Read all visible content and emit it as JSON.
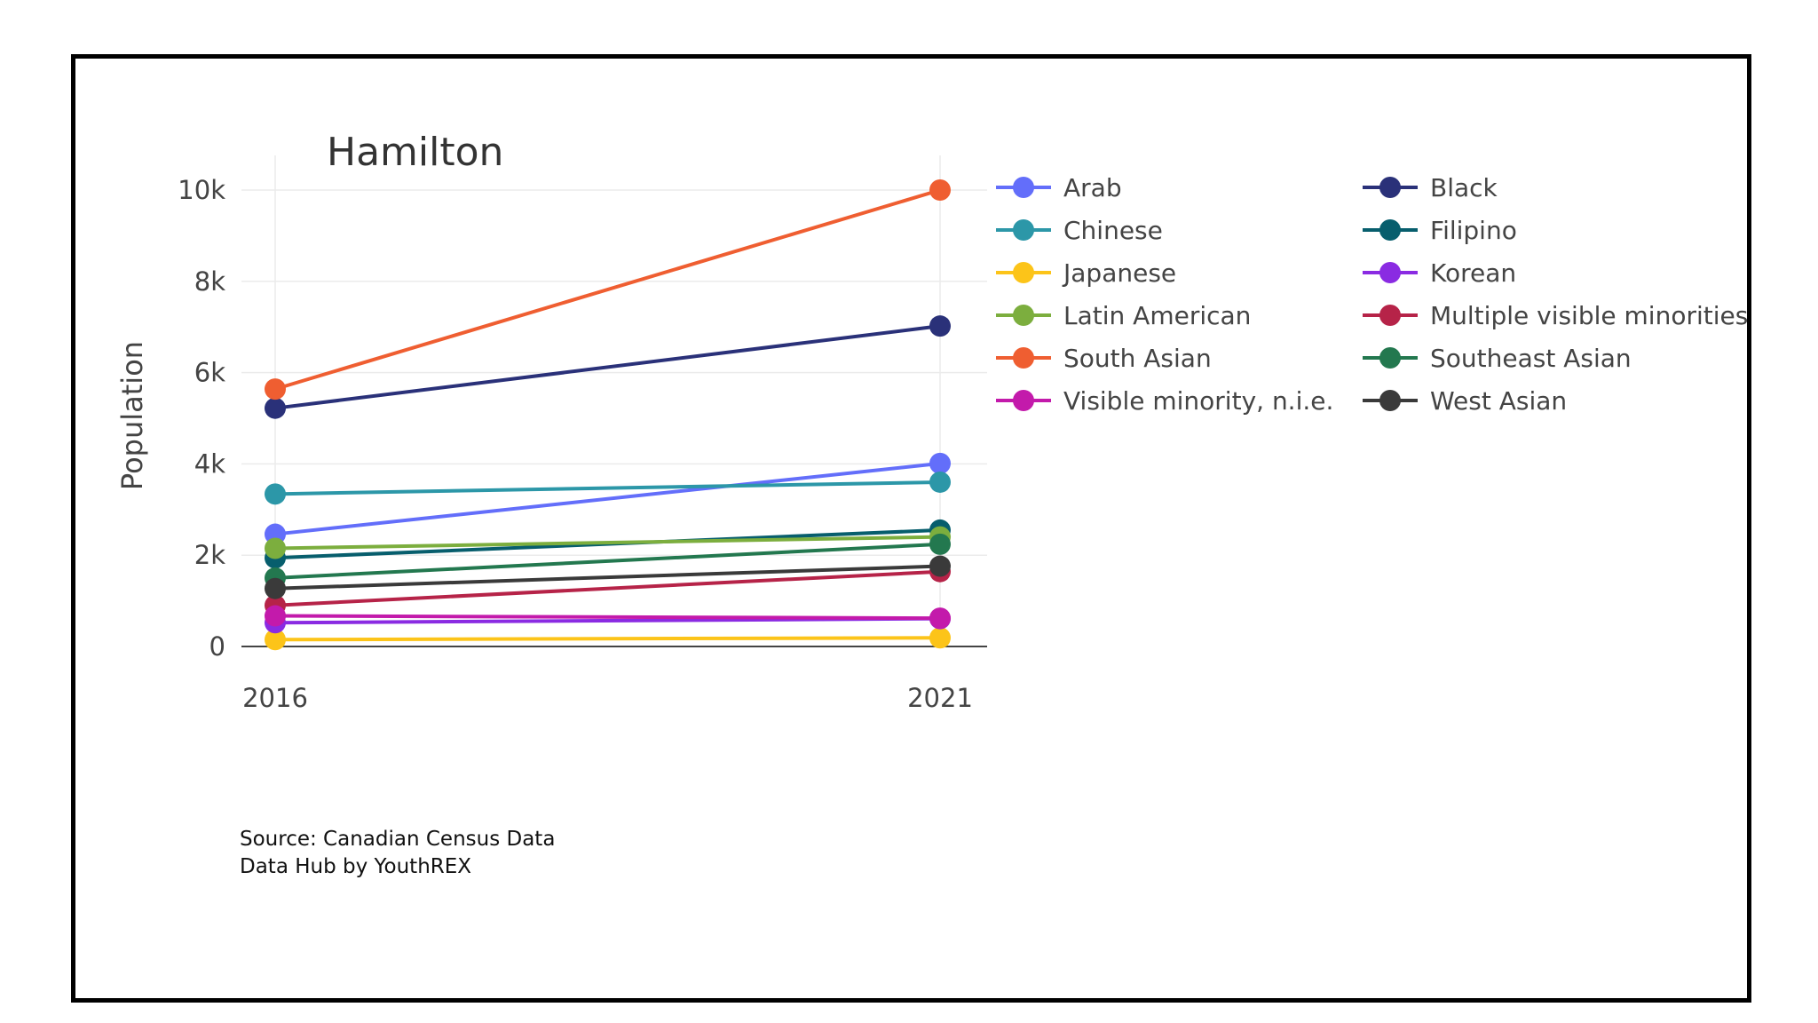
{
  "chart_data": {
    "type": "line",
    "title": "Hamilton",
    "xlabel": "",
    "ylabel": "Population",
    "x": [
      "2016",
      "2021"
    ],
    "ylim": [
      0,
      10500
    ],
    "yticks": [
      {
        "value": 0,
        "label": "0"
      },
      {
        "value": 2000,
        "label": "2k"
      },
      {
        "value": 4000,
        "label": "4k"
      },
      {
        "value": 6000,
        "label": "6k"
      },
      {
        "value": 8000,
        "label": "8k"
      },
      {
        "value": 10000,
        "label": "10k"
      }
    ],
    "grid": true,
    "legend_position": "right, two columns",
    "series": [
      {
        "name": "Arab",
        "color": "#636efa",
        "values": [
          2460,
          4010
        ]
      },
      {
        "name": "Black",
        "color": "#2a3179",
        "values": [
          5220,
          7020
        ]
      },
      {
        "name": "Chinese",
        "color": "#2c97a8",
        "values": [
          3340,
          3600
        ]
      },
      {
        "name": "Filipino",
        "color": "#075e6d",
        "values": [
          1940,
          2550
        ]
      },
      {
        "name": "Japanese",
        "color": "#fcc419",
        "values": [
          150,
          190
        ]
      },
      {
        "name": "Korean",
        "color": "#8a2be2",
        "values": [
          520,
          610
        ]
      },
      {
        "name": "Latin American",
        "color": "#7cae3e",
        "values": [
          2150,
          2400
        ]
      },
      {
        "name": "Multiple visible minorities",
        "color": "#b62348",
        "values": [
          900,
          1640
        ]
      },
      {
        "name": "South Asian",
        "color": "#ef5e31",
        "values": [
          5640,
          10000
        ]
      },
      {
        "name": "Southeast Asian",
        "color": "#23784f",
        "values": [
          1500,
          2240
        ]
      },
      {
        "name": "Visible minority, n.i.e.",
        "color": "#c31aab",
        "values": [
          670,
          620
        ]
      },
      {
        "name": "West Asian",
        "color": "#3a3a3a",
        "values": [
          1270,
          1760
        ]
      }
    ]
  },
  "source": {
    "line1": "Source: Canadian Census Data",
    "line2": "Data Hub by YouthREX"
  }
}
